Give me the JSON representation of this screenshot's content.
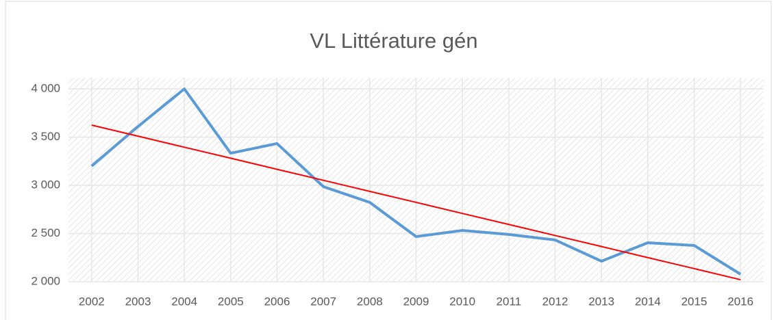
{
  "chart_data": {
    "type": "line",
    "title": "VL Littérature gén",
    "categories": [
      "2002",
      "2003",
      "2004",
      "2005",
      "2006",
      "2007",
      "2008",
      "2009",
      "2010",
      "2011",
      "2012",
      "2013",
      "2014",
      "2015",
      "2016"
    ],
    "series": [
      {
        "color": "#5b9bd5",
        "values": [
          3200,
          3610,
          4000,
          3333,
          3433,
          2986,
          2823,
          2468,
          2532,
          2490,
          2433,
          2213,
          2404,
          2376,
          2078
        ]
      },
      {
        "color": "#ff0000",
        "values": [
          3624,
          3510,
          3395,
          3281,
          3166,
          3052,
          2937,
          2823,
          2708,
          2594,
          2479,
          2365,
          2250,
          2136,
          2021
        ]
      }
    ],
    "ylim": [
      2000,
      4000
    ],
    "yticks": [
      {
        "value": 2000,
        "label": "2 000"
      },
      {
        "value": 2500,
        "label": "2 500"
      },
      {
        "value": 3000,
        "label": "3 000"
      },
      {
        "value": 3500,
        "label": "3 500"
      },
      {
        "value": 4000,
        "label": "4 000"
      }
    ],
    "grid": true
  }
}
